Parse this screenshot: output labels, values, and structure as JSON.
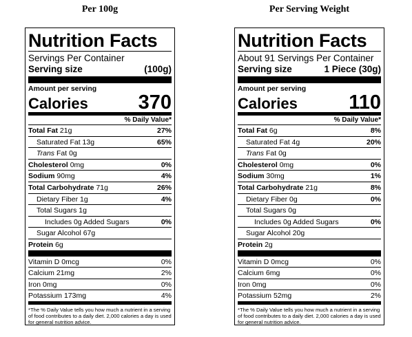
{
  "panels": [
    {
      "heading": "Per 100g",
      "title": "Nutrition Facts",
      "servings": "Servings Per Container",
      "serving_size_label": "Serving size",
      "serving_size": "(100g)",
      "amount_per_serving": "Amount per serving",
      "calories_label": "Calories",
      "calories": 370,
      "dv_header": "% Daily Value*",
      "nutrients": [
        {
          "name": "Total Fat",
          "amount": "21g",
          "dv": "27%",
          "level": 0
        },
        {
          "name": "Saturated Fat",
          "amount": "13g",
          "dv": "65%",
          "level": 1
        },
        {
          "name_prefix": "Trans",
          "name": "Fat",
          "amount": "0g",
          "level": 1
        },
        {
          "name": "Cholesterol",
          "amount": "0mg",
          "dv": "0%",
          "level": 0
        },
        {
          "name": "Sodium",
          "amount": "90mg",
          "dv": "4%",
          "level": 0
        },
        {
          "name": "Total Carbohydrate",
          "amount": "71g",
          "dv": "26%",
          "level": 0
        },
        {
          "name": "Dietary Fiber",
          "amount": "1g",
          "dv": "4%",
          "level": 1
        },
        {
          "name": "Total Sugars",
          "amount": "1g",
          "level": 1
        },
        {
          "name": "Includes 0g Added Sugars",
          "dv": "0%",
          "level": 2
        },
        {
          "name": "Sugar Alcohol",
          "amount": "67g",
          "level": 1
        },
        {
          "name": "Protein",
          "amount": "6g",
          "level": 0
        }
      ],
      "vitamins": [
        {
          "name": "Vitamin D",
          "amount": "0mcg",
          "dv": "0%"
        },
        {
          "name": "Calcium",
          "amount": "21mg",
          "dv": "2%"
        },
        {
          "name": "Iron",
          "amount": "0mg",
          "dv": "0%"
        },
        {
          "name": "Potassium",
          "amount": "173mg",
          "dv": "4%"
        }
      ],
      "footnote": "*The % Daily Value tells you how much a nutrient in a serving of food contributes to a daily diet. 2,000 calories a day is used for general nutrition advice."
    },
    {
      "heading": "Per Serving Weight",
      "title": "Nutrition Facts",
      "servings": "About 91 Servings Per Container",
      "serving_size_label": "Serving size",
      "serving_size": "1 Piece (30g)",
      "amount_per_serving": "Amount per serving",
      "calories_label": "Calories",
      "calories": 110,
      "dv_header": "% Daily Value*",
      "nutrients": [
        {
          "name": "Total Fat",
          "amount": "6g",
          "dv": "8%",
          "level": 0
        },
        {
          "name": "Saturated Fat",
          "amount": "4g",
          "dv": "20%",
          "level": 1
        },
        {
          "name_prefix": "Trans",
          "name": "Fat",
          "amount": "0g",
          "level": 1
        },
        {
          "name": "Cholesterol",
          "amount": "0mg",
          "dv": "0%",
          "level": 0
        },
        {
          "name": "Sodium",
          "amount": "30mg",
          "dv": "1%",
          "level": 0
        },
        {
          "name": "Total Carbohydrate",
          "amount": "21g",
          "dv": "8%",
          "level": 0
        },
        {
          "name": "Dietary Fiber",
          "amount": "0g",
          "dv": "0%",
          "level": 1
        },
        {
          "name": "Total Sugars",
          "amount": "0g",
          "level": 1
        },
        {
          "name": "Includes 0g Added Sugars",
          "dv": "0%",
          "level": 2
        },
        {
          "name": "Sugar Alcohol",
          "amount": "20g",
          "level": 1
        },
        {
          "name": "Protein",
          "amount": "2g",
          "level": 0
        }
      ],
      "vitamins": [
        {
          "name": "Vitamin D",
          "amount": "0mcg",
          "dv": "0%"
        },
        {
          "name": "Calcium",
          "amount": "6mg",
          "dv": "0%"
        },
        {
          "name": "Iron",
          "amount": "0mg",
          "dv": "0%"
        },
        {
          "name": "Potassium",
          "amount": "52mg",
          "dv": "2%"
        }
      ],
      "footnote": "*The % Daily Value tells you how much a nutrient in a serving of food contributes to a daily diet. 2,000 calories a day is used for general nutrition advice."
    }
  ]
}
